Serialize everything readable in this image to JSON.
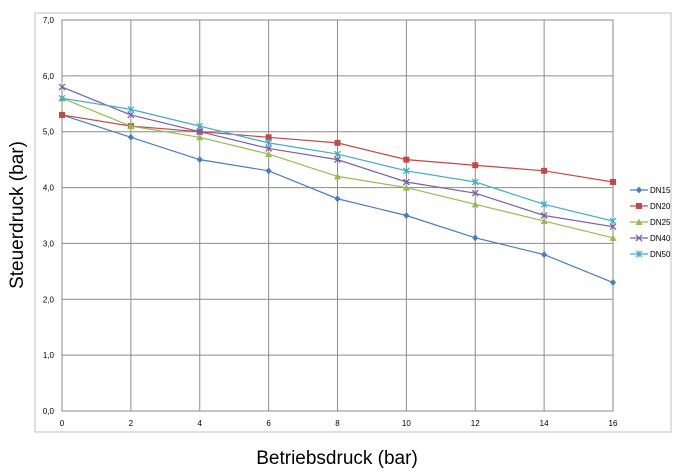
{
  "chart_data": {
    "type": "line",
    "title": "",
    "xlabel": "Betriebsdruck (bar)",
    "ylabel": "Steuerdruck (bar)",
    "x": [
      0,
      2,
      4,
      6,
      8,
      10,
      12,
      14,
      16
    ],
    "x_tick_labels": [
      "0",
      "2",
      "4",
      "6",
      "8",
      "10",
      "12",
      "14",
      "16"
    ],
    "y_tick_labels": [
      "0,0",
      "1,0",
      "2,0",
      "3,0",
      "4,0",
      "5,0",
      "6,0",
      "7,0"
    ],
    "xlim": [
      0,
      16
    ],
    "ylim": [
      0,
      7
    ],
    "grid": true,
    "legend_position": "right",
    "series": [
      {
        "name": "DN15",
        "color": "#4a7ebb",
        "marker": "diamond",
        "values": [
          5.3,
          4.9,
          4.5,
          4.3,
          3.8,
          3.5,
          3.1,
          2.8,
          2.3
        ]
      },
      {
        "name": "DN20",
        "color": "#be4b48",
        "marker": "square",
        "values": [
          5.3,
          5.1,
          5.0,
          4.9,
          4.8,
          4.5,
          4.4,
          4.3,
          4.1
        ]
      },
      {
        "name": "DN25",
        "color": "#98b954",
        "marker": "triangle",
        "values": [
          5.6,
          5.1,
          4.9,
          4.6,
          4.2,
          4.0,
          3.7,
          3.4,
          3.1
        ]
      },
      {
        "name": "DN40",
        "color": "#7d60a0",
        "marker": "x",
        "values": [
          5.8,
          5.3,
          5.0,
          4.7,
          4.5,
          4.1,
          3.9,
          3.5,
          3.3
        ]
      },
      {
        "name": "DN50",
        "color": "#46aac5",
        "marker": "star",
        "values": [
          5.6,
          5.4,
          5.1,
          4.8,
          4.6,
          4.3,
          4.1,
          3.7,
          3.4
        ]
      }
    ]
  }
}
